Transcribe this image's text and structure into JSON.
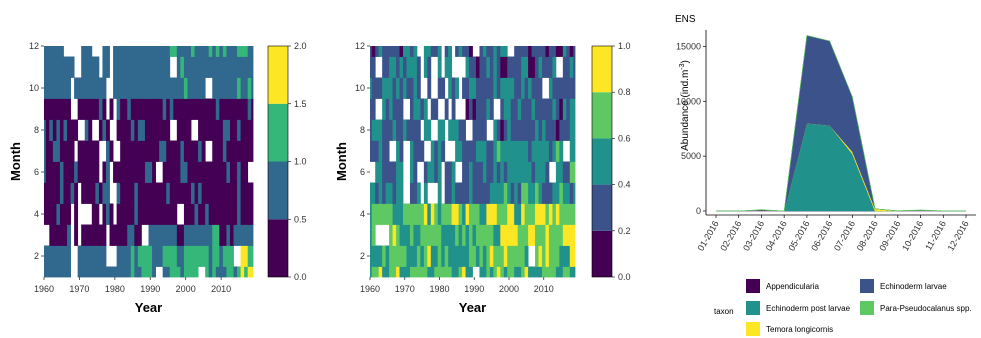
{
  "chart_data": [
    {
      "type": "heatmap",
      "title": "",
      "xlabel": "Year",
      "ylabel": "Month",
      "xlim": [
        1960,
        2019
      ],
      "ylim": [
        1,
        12
      ],
      "xticks": [
        "1960",
        "1970",
        "1980",
        "1990",
        "2000",
        "2010"
      ],
      "yticks": [
        "2",
        "4",
        "6",
        "8",
        "10",
        "12"
      ],
      "colorbar": {
        "ticks": [
          "0.0",
          "0.5",
          "1.0",
          "1.5",
          "2.0"
        ],
        "bins": [
          {
            "from": 0.0,
            "to": 0.5,
            "color": "#440154"
          },
          {
            "from": 0.5,
            "to": 1.0,
            "color": "#31688E"
          },
          {
            "from": 1.0,
            "to": 1.5,
            "color": "#35B779"
          },
          {
            "from": 1.5,
            "to": 2.0,
            "color": "#FDE725"
          }
        ]
      }
    },
    {
      "type": "heatmap",
      "title": "",
      "xlabel": "Year",
      "ylabel": "Month",
      "xlim": [
        1960,
        2019
      ],
      "ylim": [
        1,
        12
      ],
      "xticks": [
        "1960",
        "1970",
        "1980",
        "1990",
        "2000",
        "2010"
      ],
      "yticks": [
        "2",
        "4",
        "6",
        "8",
        "10",
        "12"
      ],
      "colorbar": {
        "ticks": [
          "0.0",
          "0.2",
          "0.4",
          "0.6",
          "0.8",
          "1.0"
        ],
        "bins": [
          {
            "from": 0.0,
            "to": 0.2,
            "color": "#440154"
          },
          {
            "from": 0.2,
            "to": 0.4,
            "color": "#3B528B"
          },
          {
            "from": 0.4,
            "to": 0.6,
            "color": "#21918C"
          },
          {
            "from": 0.6,
            "to": 0.8,
            "color": "#5EC962"
          },
          {
            "from": 0.8,
            "to": 1.0,
            "color": "#FDE725"
          }
        ]
      }
    },
    {
      "type": "area",
      "title": "ENS",
      "xlabel": "",
      "ylabel": "Abundance (ind.m",
      "ylabel_sup": "-3",
      "ylabel_end": ")",
      "ylim": [
        0,
        16500
      ],
      "yticks": [
        0,
        5000,
        10000,
        15000
      ],
      "categories": [
        "01-2016",
        "02-2016",
        "03-2016",
        "04-2016",
        "05-2016",
        "06-2016",
        "07-2016",
        "08-2016",
        "09-2016",
        "10-2016",
        "11-2016",
        "12-2016"
      ],
      "stacked": true,
      "series": [
        {
          "name": "Appendicularia",
          "color": "#440154",
          "values": [
            0,
            0,
            80,
            0,
            0,
            0,
            0,
            0,
            0,
            60,
            0,
            0
          ]
        },
        {
          "name": "Echinoderm post larvae",
          "color": "#21918C",
          "values": [
            0,
            0,
            0,
            0,
            8000,
            7800,
            5200,
            0,
            0,
            0,
            0,
            0
          ]
        },
        {
          "name": "Temora longicornis",
          "color": "#FDE725",
          "values": [
            0,
            0,
            0,
            0,
            0,
            0,
            200,
            200,
            0,
            0,
            0,
            0
          ]
        },
        {
          "name": "Echinoderm larvae",
          "color": "#3B528B",
          "values": [
            0,
            0,
            0,
            0,
            8000,
            7700,
            5000,
            0,
            0,
            0,
            0,
            0
          ]
        },
        {
          "name": "Para-Pseudocalanus spp.",
          "color": "#5EC962",
          "values": [
            0,
            0,
            50,
            0,
            0,
            0,
            0,
            0,
            30,
            40,
            20,
            0
          ]
        }
      ],
      "legend": {
        "title": "taxon",
        "position": "bottom",
        "order": [
          0,
          3,
          1,
          4,
          2
        ]
      }
    }
  ]
}
